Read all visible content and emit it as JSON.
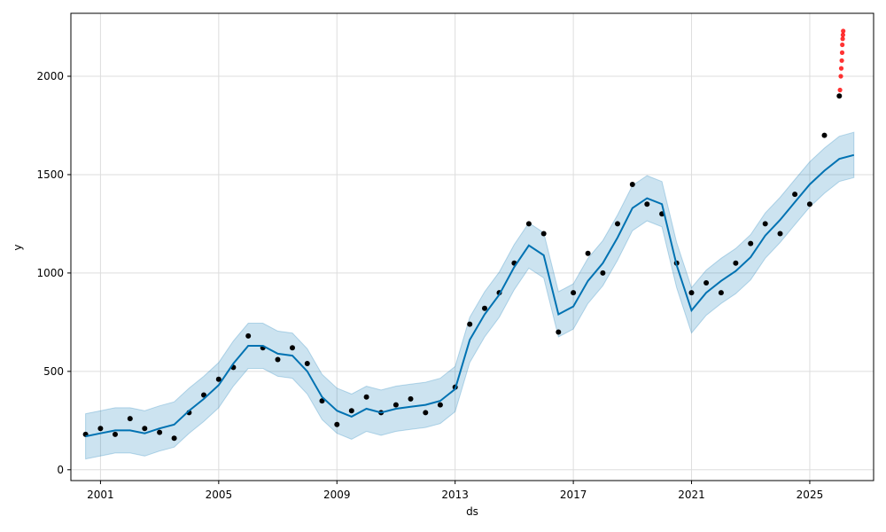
{
  "chart_data": {
    "type": "scatter",
    "xlabel": "ds",
    "ylabel": "y",
    "xlim": [
      "2000-01-01",
      "2027-03-01"
    ],
    "ylim": [
      -55,
      2320
    ],
    "xticks": [
      {
        "label": "2001",
        "date": "2001-01-01"
      },
      {
        "label": "2005",
        "date": "2005-01-01"
      },
      {
        "label": "2009",
        "date": "2009-01-01"
      },
      {
        "label": "2013",
        "date": "2013-01-01"
      },
      {
        "label": "2017",
        "date": "2017-01-01"
      },
      {
        "label": "2021",
        "date": "2021-01-01"
      },
      {
        "label": "2025",
        "date": "2025-01-01"
      }
    ],
    "yticks": [
      {
        "label": "0",
        "value": 0
      },
      {
        "label": "500",
        "value": 500
      },
      {
        "label": "1000",
        "value": 1000
      },
      {
        "label": "1500",
        "value": 1500
      },
      {
        "label": "2000",
        "value": 2000
      }
    ],
    "grid": true,
    "colors": {
      "observed": "#000000",
      "highlight": "#ff0000",
      "forecast": "#0072b2",
      "band": "#0072b2"
    },
    "series": [
      {
        "kind": "forecast_line",
        "points": [
          [
            "2000-07-01",
            170
          ],
          [
            "2001-01-01",
            185
          ],
          [
            "2001-07-01",
            200
          ],
          [
            "2002-01-01",
            200
          ],
          [
            "2002-07-01",
            185
          ],
          [
            "2003-01-01",
            210
          ],
          [
            "2003-07-01",
            230
          ],
          [
            "2004-01-01",
            300
          ],
          [
            "2004-07-01",
            360
          ],
          [
            "2005-01-01",
            430
          ],
          [
            "2005-07-01",
            540
          ],
          [
            "2006-01-01",
            630
          ],
          [
            "2006-07-01",
            630
          ],
          [
            "2007-01-01",
            590
          ],
          [
            "2007-07-01",
            580
          ],
          [
            "2008-01-01",
            500
          ],
          [
            "2008-07-01",
            370
          ],
          [
            "2009-01-01",
            300
          ],
          [
            "2009-07-01",
            270
          ],
          [
            "2010-01-01",
            310
          ],
          [
            "2010-07-01",
            290
          ],
          [
            "2011-01-01",
            310
          ],
          [
            "2011-07-01",
            320
          ],
          [
            "2012-01-01",
            330
          ],
          [
            "2012-07-01",
            350
          ],
          [
            "2013-01-01",
            410
          ],
          [
            "2013-07-01",
            660
          ],
          [
            "2014-01-01",
            790
          ],
          [
            "2014-07-01",
            890
          ],
          [
            "2015-01-01",
            1030
          ],
          [
            "2015-07-01",
            1140
          ],
          [
            "2016-01-01",
            1090
          ],
          [
            "2016-07-01",
            790
          ],
          [
            "2017-01-01",
            830
          ],
          [
            "2017-07-01",
            960
          ],
          [
            "2018-01-01",
            1050
          ],
          [
            "2018-07-01",
            1180
          ],
          [
            "2019-01-01",
            1330
          ],
          [
            "2019-07-01",
            1380
          ],
          [
            "2020-01-01",
            1350
          ],
          [
            "2020-07-01",
            1040
          ],
          [
            "2021-01-01",
            810
          ],
          [
            "2021-07-01",
            900
          ],
          [
            "2022-01-01",
            960
          ],
          [
            "2022-07-01",
            1010
          ],
          [
            "2023-01-01",
            1080
          ],
          [
            "2023-07-01",
            1190
          ],
          [
            "2024-01-01",
            1270
          ],
          [
            "2024-07-01",
            1360
          ],
          [
            "2025-01-01",
            1450
          ],
          [
            "2025-07-01",
            1520
          ],
          [
            "2026-01-01",
            1580
          ],
          [
            "2026-07-01",
            1600
          ]
        ]
      },
      {
        "kind": "uncertainty_band",
        "half_width": 115
      },
      {
        "kind": "observed",
        "points": [
          [
            "2000-07-01",
            180
          ],
          [
            "2001-01-01",
            210
          ],
          [
            "2001-07-01",
            180
          ],
          [
            "2002-01-01",
            260
          ],
          [
            "2002-07-01",
            210
          ],
          [
            "2003-01-01",
            190
          ],
          [
            "2003-07-01",
            160
          ],
          [
            "2004-01-01",
            290
          ],
          [
            "2004-07-01",
            380
          ],
          [
            "2005-01-01",
            460
          ],
          [
            "2005-07-01",
            520
          ],
          [
            "2006-01-01",
            680
          ],
          [
            "2006-07-01",
            620
          ],
          [
            "2007-01-01",
            560
          ],
          [
            "2007-07-01",
            620
          ],
          [
            "2008-01-01",
            540
          ],
          [
            "2008-07-01",
            350
          ],
          [
            "2009-01-01",
            230
          ],
          [
            "2009-07-01",
            300
          ],
          [
            "2010-01-01",
            370
          ],
          [
            "2010-07-01",
            290
          ],
          [
            "2011-01-01",
            330
          ],
          [
            "2011-07-01",
            360
          ],
          [
            "2012-01-01",
            290
          ],
          [
            "2012-07-01",
            330
          ],
          [
            "2013-01-01",
            420
          ],
          [
            "2013-07-01",
            740
          ],
          [
            "2014-01-01",
            820
          ],
          [
            "2014-07-01",
            900
          ],
          [
            "2015-01-01",
            1050
          ],
          [
            "2015-07-01",
            1250
          ],
          [
            "2016-01-01",
            1200
          ],
          [
            "2016-07-01",
            700
          ],
          [
            "2017-01-01",
            900
          ],
          [
            "2017-07-01",
            1100
          ],
          [
            "2018-01-01",
            1000
          ],
          [
            "2018-07-01",
            1250
          ],
          [
            "2019-01-01",
            1450
          ],
          [
            "2019-07-01",
            1350
          ],
          [
            "2020-01-01",
            1300
          ],
          [
            "2020-07-01",
            1050
          ],
          [
            "2021-01-01",
            900
          ],
          [
            "2021-07-01",
            950
          ],
          [
            "2022-01-01",
            900
          ],
          [
            "2022-07-01",
            1050
          ],
          [
            "2023-01-01",
            1150
          ],
          [
            "2023-07-01",
            1250
          ],
          [
            "2024-01-01",
            1200
          ],
          [
            "2024-07-01",
            1400
          ],
          [
            "2025-01-01",
            1350
          ],
          [
            "2025-07-01",
            1700
          ],
          [
            "2026-01-01",
            1900
          ]
        ]
      },
      {
        "kind": "observed_recent",
        "points": [
          [
            "2026-01-10",
            1930
          ],
          [
            "2026-01-20",
            2000
          ],
          [
            "2026-01-25",
            2040
          ],
          [
            "2026-02-01",
            2080
          ],
          [
            "2026-02-05",
            2120
          ],
          [
            "2026-02-08",
            2160
          ],
          [
            "2026-02-12",
            2190
          ],
          [
            "2026-02-15",
            2210
          ],
          [
            "2026-02-18",
            2230
          ]
        ]
      }
    ]
  }
}
